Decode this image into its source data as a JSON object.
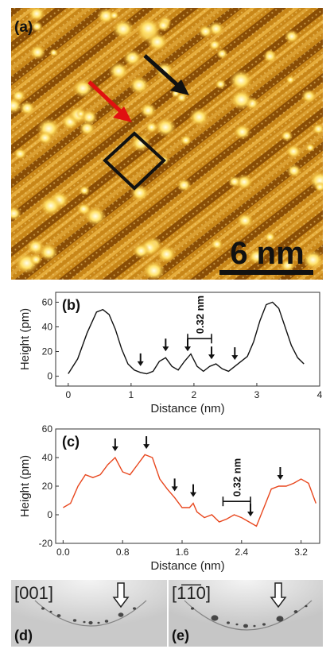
{
  "panels": {
    "a": {
      "label": "(a)",
      "scalebar": "6 nm"
    },
    "d": {
      "label": "(d)",
      "direction": "[001]"
    },
    "e": {
      "label": "(e)",
      "direction": "[1̅1̅0]",
      "direction_text": "[1-10]"
    }
  },
  "chart_data": [
    {
      "type": "line",
      "label": "(b)",
      "xlabel": "Distance (nm)",
      "ylabel": "Height (pm)",
      "xlim": [
        -0.2,
        4
      ],
      "ylim": [
        -8,
        68
      ],
      "xticks": [
        0,
        1,
        2,
        3,
        4
      ],
      "yticks": [
        0,
        20,
        40,
        60
      ],
      "annotation": "0.32 nm",
      "color": "#111111",
      "series": [
        {
          "x": [
            0.0,
            0.15,
            0.3,
            0.45,
            0.55,
            0.65,
            0.75,
            0.85,
            0.95,
            1.05,
            1.15,
            1.25,
            1.35,
            1.45,
            1.55,
            1.65,
            1.75,
            1.85,
            1.95,
            2.05,
            2.15,
            2.25,
            2.35,
            2.45,
            2.55,
            2.65,
            2.75,
            2.85,
            2.95,
            3.05,
            3.15,
            3.25,
            3.35,
            3.45,
            3.55,
            3.65,
            3.75
          ],
          "y": [
            2,
            14,
            35,
            52,
            54,
            50,
            38,
            22,
            10,
            5,
            3,
            2,
            4,
            12,
            15,
            8,
            5,
            12,
            18,
            8,
            4,
            8,
            10,
            6,
            4,
            8,
            12,
            16,
            28,
            45,
            58,
            60,
            55,
            40,
            25,
            15,
            10
          ]
        }
      ],
      "arrows_x": [
        1.15,
        1.55,
        1.9,
        2.28,
        2.65
      ],
      "span_x": [
        1.9,
        2.28
      ]
    },
    {
      "type": "line",
      "label": "(c)",
      "xlabel": "Distance (nm)",
      "ylabel": "Height (pm)",
      "xlim": [
        -0.1,
        3.45
      ],
      "ylim": [
        -20,
        60
      ],
      "xticks": [
        0.0,
        0.8,
        1.6,
        2.4,
        3.2
      ],
      "xtick_labels": [
        "0.0",
        "0.8",
        "1.6",
        "2.4",
        "3.2"
      ],
      "yticks": [
        -20,
        0,
        20,
        40,
        60
      ],
      "annotation": "0.32 nm",
      "color": "#e8471e",
      "series": [
        {
          "x": [
            0.0,
            0.1,
            0.2,
            0.3,
            0.4,
            0.5,
            0.6,
            0.7,
            0.8,
            0.9,
            1.0,
            1.1,
            1.2,
            1.3,
            1.4,
            1.5,
            1.6,
            1.7,
            1.75,
            1.8,
            1.9,
            2.0,
            2.1,
            2.2,
            2.3,
            2.4,
            2.5,
            2.6,
            2.7,
            2.8,
            2.9,
            3.0,
            3.1,
            3.2,
            3.3,
            3.4
          ],
          "y": [
            5,
            8,
            20,
            28,
            26,
            28,
            35,
            40,
            30,
            28,
            35,
            42,
            40,
            25,
            18,
            12,
            5,
            5,
            8,
            2,
            -2,
            0,
            -5,
            -3,
            0,
            -2,
            -5,
            -8,
            5,
            18,
            20,
            20,
            22,
            25,
            22,
            8
          ]
        }
      ],
      "arrows_x": [
        0.7,
        1.12,
        1.5,
        1.75,
        2.52,
        2.92
      ],
      "span_x": [
        2.15,
        2.52
      ]
    }
  ]
}
